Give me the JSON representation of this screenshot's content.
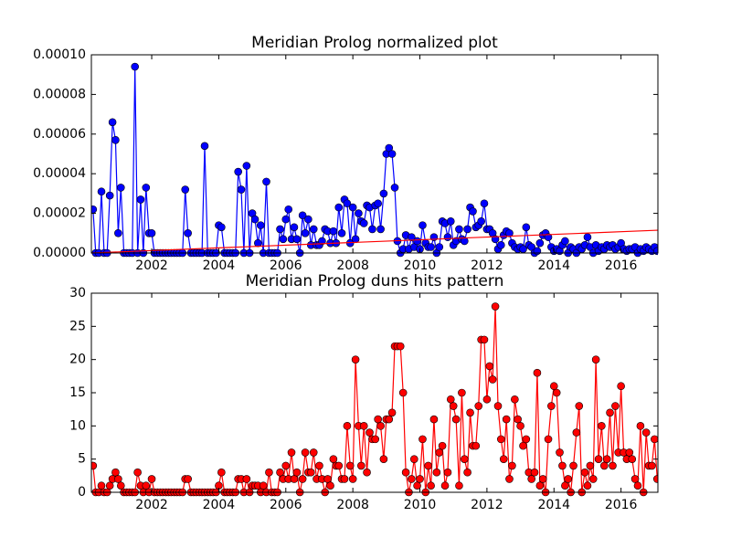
{
  "chart_data": [
    {
      "type": "line",
      "title": "Meridian Prolog normalized plot",
      "xlim": [
        2000.2,
        2017.1
      ],
      "xticks": [
        2002,
        2004,
        2006,
        2008,
        2010,
        2012,
        2014,
        2016
      ],
      "ylim": [
        0,
        0.0001
      ],
      "yticks": [
        {
          "value": 0,
          "label": "0.00000"
        },
        {
          "value": 2e-05,
          "label": "0.00002"
        },
        {
          "value": 4e-05,
          "label": "0.00004"
        },
        {
          "value": 6e-05,
          "label": "0.00006"
        },
        {
          "value": 8e-05,
          "label": "0.00008"
        },
        {
          "value": 0.0001,
          "label": "0.00010"
        }
      ],
      "x": [
        2000.25,
        2000.33,
        2000.42,
        2000.5,
        2000.58,
        2000.67,
        2000.75,
        2000.83,
        2000.92,
        2001,
        2001.08,
        2001.17,
        2001.25,
        2001.33,
        2001.42,
        2001.5,
        2001.58,
        2001.67,
        2001.75,
        2001.83,
        2001.92,
        2002,
        2002.08,
        2002.17,
        2002.25,
        2002.33,
        2002.42,
        2002.5,
        2002.58,
        2002.67,
        2002.75,
        2002.83,
        2002.92,
        2003,
        2003.08,
        2003.17,
        2003.25,
        2003.33,
        2003.42,
        2003.5,
        2003.58,
        2003.67,
        2003.75,
        2003.83,
        2003.92,
        2004,
        2004.08,
        2004.17,
        2004.25,
        2004.33,
        2004.42,
        2004.5,
        2004.58,
        2004.67,
        2004.75,
        2004.83,
        2004.92,
        2005,
        2005.08,
        2005.17,
        2005.25,
        2005.33,
        2005.42,
        2005.5,
        2005.58,
        2005.67,
        2005.75,
        2005.83,
        2005.92,
        2006,
        2006.08,
        2006.17,
        2006.25,
        2006.33,
        2006.42,
        2006.5,
        2006.58,
        2006.67,
        2006.75,
        2006.83,
        2006.92,
        2007,
        2007.08,
        2007.17,
        2007.25,
        2007.33,
        2007.42,
        2007.5,
        2007.58,
        2007.67,
        2007.75,
        2007.83,
        2007.92,
        2008,
        2008.08,
        2008.17,
        2008.25,
        2008.33,
        2008.42,
        2008.5,
        2008.58,
        2008.67,
        2008.75,
        2008.83,
        2008.92,
        2009,
        2009.08,
        2009.17,
        2009.25,
        2009.33,
        2009.42,
        2009.5,
        2009.58,
        2009.67,
        2009.75,
        2009.83,
        2009.92,
        2010,
        2010.08,
        2010.17,
        2010.25,
        2010.33,
        2010.42,
        2010.5,
        2010.58,
        2010.67,
        2010.75,
        2010.83,
        2010.92,
        2011,
        2011.08,
        2011.17,
        2011.25,
        2011.33,
        2011.42,
        2011.5,
        2011.58,
        2011.67,
        2011.75,
        2011.83,
        2011.92,
        2012,
        2012.08,
        2012.17,
        2012.25,
        2012.33,
        2012.42,
        2012.5,
        2012.58,
        2012.67,
        2012.75,
        2012.83,
        2012.92,
        2013,
        2013.08,
        2013.17,
        2013.25,
        2013.33,
        2013.42,
        2013.5,
        2013.58,
        2013.67,
        2013.75,
        2013.83,
        2013.92,
        2014,
        2014.08,
        2014.17,
        2014.25,
        2014.33,
        2014.42,
        2014.5,
        2014.58,
        2014.67,
        2014.75,
        2014.83,
        2014.92,
        2015,
        2015.08,
        2015.17,
        2015.25,
        2015.33,
        2015.42,
        2015.5,
        2015.58,
        2015.67,
        2015.75,
        2015.83,
        2015.92,
        2016,
        2016.08,
        2016.17,
        2016.25,
        2016.33,
        2016.42,
        2016.5,
        2016.58,
        2016.67,
        2016.75,
        2016.83,
        2016.92,
        2017,
        2017.08
      ],
      "series": [
        {
          "color": "#0000ff",
          "marker": true,
          "values": [
            2.2e-05,
            0,
            0,
            3.1e-05,
            0,
            0,
            2.9e-05,
            6.6e-05,
            5.7e-05,
            1e-05,
            3.3e-05,
            0,
            0,
            0,
            0,
            9.4e-05,
            0,
            2.7e-05,
            0,
            3.3e-05,
            1e-05,
            1e-05,
            0,
            0,
            0,
            0,
            0,
            0,
            0,
            0,
            0,
            0,
            0,
            3.2e-05,
            1e-05,
            0,
            0,
            0,
            0,
            0,
            5.4e-05,
            0,
            0,
            0,
            0,
            1.4e-05,
            1.3e-05,
            0,
            0,
            0,
            0,
            0,
            4.1e-05,
            3.2e-05,
            0,
            4.4e-05,
            0,
            2e-05,
            1.7e-05,
            5e-06,
            1.4e-05,
            0,
            3.6e-05,
            0,
            0,
            0,
            0,
            1.2e-05,
            7e-06,
            1.7e-05,
            2.2e-05,
            7e-06,
            1.3e-05,
            7e-06,
            0,
            1.9e-05,
            1e-05,
            1.7e-05,
            4e-06,
            1.2e-05,
            4e-06,
            4e-06,
            6e-06,
            1.2e-05,
            1.1e-05,
            5e-06,
            1.1e-05,
            5e-06,
            2.3e-05,
            1e-05,
            2.7e-05,
            2.5e-05,
            5e-06,
            2.3e-05,
            7e-06,
            2e-05,
            1.6e-05,
            1.5e-05,
            2.4e-05,
            2.3e-05,
            1.2e-05,
            2.4e-05,
            2.5e-05,
            1.2e-05,
            3e-05,
            5e-05,
            5.3e-05,
            5e-05,
            3.3e-05,
            6e-06,
            0,
            2e-06,
            9e-06,
            2e-06,
            8e-06,
            3e-06,
            6e-06,
            2e-06,
            1.4e-05,
            5e-06,
            3e-06,
            3e-06,
            8e-06,
            0,
            3e-06,
            1.6e-05,
            1.5e-05,
            8e-06,
            1.6e-05,
            4e-06,
            6e-06,
            1.2e-05,
            7e-06,
            6e-06,
            1.2e-05,
            2.3e-05,
            2.1e-05,
            1.3e-05,
            1.4e-05,
            1.6e-05,
            2.5e-05,
            1.2e-05,
            1.2e-05,
            1e-05,
            7e-06,
            2e-06,
            4e-06,
            9e-06,
            1.1e-05,
            1e-05,
            5e-06,
            3e-06,
            2e-06,
            3e-06,
            2e-06,
            1.3e-05,
            4e-06,
            3e-06,
            0,
            1e-06,
            5e-06,
            9e-06,
            1e-05,
            8e-06,
            3e-06,
            1e-06,
            2e-06,
            1e-06,
            4e-06,
            6e-06,
            0,
            3e-06,
            2e-06,
            0,
            3e-06,
            2e-06,
            4e-06,
            8e-06,
            3e-06,
            0,
            4e-06,
            1e-06,
            3e-06,
            2e-06,
            4e-06,
            3e-06,
            4e-06,
            2e-06,
            3e-06,
            5e-06,
            2e-06,
            1e-06,
            2e-06,
            2e-06,
            3e-06,
            0,
            2e-06,
            1e-06,
            3e-06,
            2e-06,
            1e-06,
            3e-06,
            1e-06
          ]
        },
        {
          "color": "#ff0000",
          "marker": false,
          "x": [
            2000.2,
            2017.1
          ],
          "values": [
            0,
            1.15e-05
          ]
        }
      ]
    },
    {
      "type": "line",
      "title": "Meridian Prolog duns hits pattern",
      "xlim": [
        2000.2,
        2017.1
      ],
      "xticks": [
        2002,
        2004,
        2006,
        2008,
        2010,
        2012,
        2014,
        2016
      ],
      "ylim": [
        0,
        30
      ],
      "yticks": [
        0,
        5,
        10,
        15,
        20,
        25,
        30
      ],
      "x": [
        2000.25,
        2000.33,
        2000.42,
        2000.5,
        2000.58,
        2000.67,
        2000.75,
        2000.83,
        2000.92,
        2001,
        2001.08,
        2001.17,
        2001.25,
        2001.33,
        2001.42,
        2001.5,
        2001.58,
        2001.67,
        2001.75,
        2001.83,
        2001.92,
        2002,
        2002.08,
        2002.17,
        2002.25,
        2002.33,
        2002.42,
        2002.5,
        2002.58,
        2002.67,
        2002.75,
        2002.83,
        2002.92,
        2003,
        2003.08,
        2003.17,
        2003.25,
        2003.33,
        2003.42,
        2003.5,
        2003.58,
        2003.67,
        2003.75,
        2003.83,
        2003.92,
        2004,
        2004.08,
        2004.17,
        2004.25,
        2004.33,
        2004.42,
        2004.5,
        2004.58,
        2004.67,
        2004.75,
        2004.83,
        2004.92,
        2005,
        2005.08,
        2005.17,
        2005.25,
        2005.33,
        2005.42,
        2005.5,
        2005.58,
        2005.67,
        2005.75,
        2005.83,
        2005.92,
        2006,
        2006.08,
        2006.17,
        2006.25,
        2006.33,
        2006.42,
        2006.5,
        2006.58,
        2006.67,
        2006.75,
        2006.83,
        2006.92,
        2007,
        2007.08,
        2007.17,
        2007.25,
        2007.33,
        2007.42,
        2007.5,
        2007.58,
        2007.67,
        2007.75,
        2007.83,
        2007.92,
        2008,
        2008.08,
        2008.17,
        2008.25,
        2008.33,
        2008.42,
        2008.5,
        2008.58,
        2008.67,
        2008.75,
        2008.83,
        2008.92,
        2009,
        2009.08,
        2009.17,
        2009.25,
        2009.33,
        2009.42,
        2009.5,
        2009.58,
        2009.67,
        2009.75,
        2009.83,
        2009.92,
        2010,
        2010.08,
        2010.17,
        2010.25,
        2010.33,
        2010.42,
        2010.5,
        2010.58,
        2010.67,
        2010.75,
        2010.83,
        2010.92,
        2011,
        2011.08,
        2011.17,
        2011.25,
        2011.33,
        2011.42,
        2011.5,
        2011.58,
        2011.67,
        2011.75,
        2011.83,
        2011.92,
        2012,
        2012.08,
        2012.17,
        2012.25,
        2012.33,
        2012.42,
        2012.5,
        2012.58,
        2012.67,
        2012.75,
        2012.83,
        2012.92,
        2013,
        2013.08,
        2013.17,
        2013.25,
        2013.33,
        2013.42,
        2013.5,
        2013.58,
        2013.67,
        2013.75,
        2013.83,
        2013.92,
        2014,
        2014.08,
        2014.17,
        2014.25,
        2014.33,
        2014.42,
        2014.5,
        2014.58,
        2014.67,
        2014.75,
        2014.83,
        2014.92,
        2015,
        2015.08,
        2015.17,
        2015.25,
        2015.33,
        2015.42,
        2015.5,
        2015.58,
        2015.67,
        2015.75,
        2015.83,
        2015.92,
        2016,
        2016.08,
        2016.17,
        2016.25,
        2016.33,
        2016.42,
        2016.5,
        2016.58,
        2016.67,
        2016.75,
        2016.83,
        2016.92,
        2017,
        2017.08
      ],
      "series": [
        {
          "color": "#ff0000",
          "marker": true,
          "values": [
            4,
            0,
            0,
            1,
            0,
            0,
            1,
            2,
            3,
            2,
            1,
            0,
            0,
            0,
            0,
            0,
            3,
            1,
            0,
            1,
            0,
            2,
            0,
            0,
            0,
            0,
            0,
            0,
            0,
            0,
            0,
            0,
            0,
            2,
            2,
            0,
            0,
            0,
            0,
            0,
            0,
            0,
            0,
            0,
            0,
            1,
            3,
            0,
            0,
            0,
            0,
            0,
            2,
            2,
            0,
            2,
            0,
            1,
            1,
            1,
            0,
            1,
            0,
            3,
            0,
            0,
            0,
            3,
            2,
            4,
            2,
            6,
            2,
            3,
            0,
            2,
            6,
            3,
            3,
            6,
            2,
            4,
            2,
            0,
            2,
            1,
            5,
            4,
            4,
            2,
            2,
            10,
            4,
            2,
            20,
            10,
            4,
            10,
            3,
            9,
            8,
            8,
            11,
            10,
            5,
            11,
            11,
            12,
            22,
            22,
            22,
            15,
            3,
            0,
            2,
            5,
            1,
            2,
            8,
            0,
            4,
            1,
            11,
            3,
            6,
            7,
            1,
            3,
            14,
            13,
            11,
            1,
            15,
            5,
            3,
            12,
            7,
            7,
            13,
            23,
            23,
            14,
            19,
            17,
            28,
            13,
            8,
            5,
            11,
            2,
            4,
            14,
            11,
            10,
            7,
            8,
            3,
            2,
            3,
            18,
            1,
            2,
            0,
            8,
            13,
            16,
            15,
            6,
            4,
            1,
            2,
            0,
            4,
            9,
            13,
            0,
            3,
            1,
            4,
            2,
            20,
            5,
            10,
            4,
            5,
            12,
            4,
            13,
            6,
            16,
            6,
            5,
            6,
            5,
            2,
            1,
            10,
            0,
            9,
            4,
            4,
            8,
            2
          ]
        }
      ]
    }
  ]
}
